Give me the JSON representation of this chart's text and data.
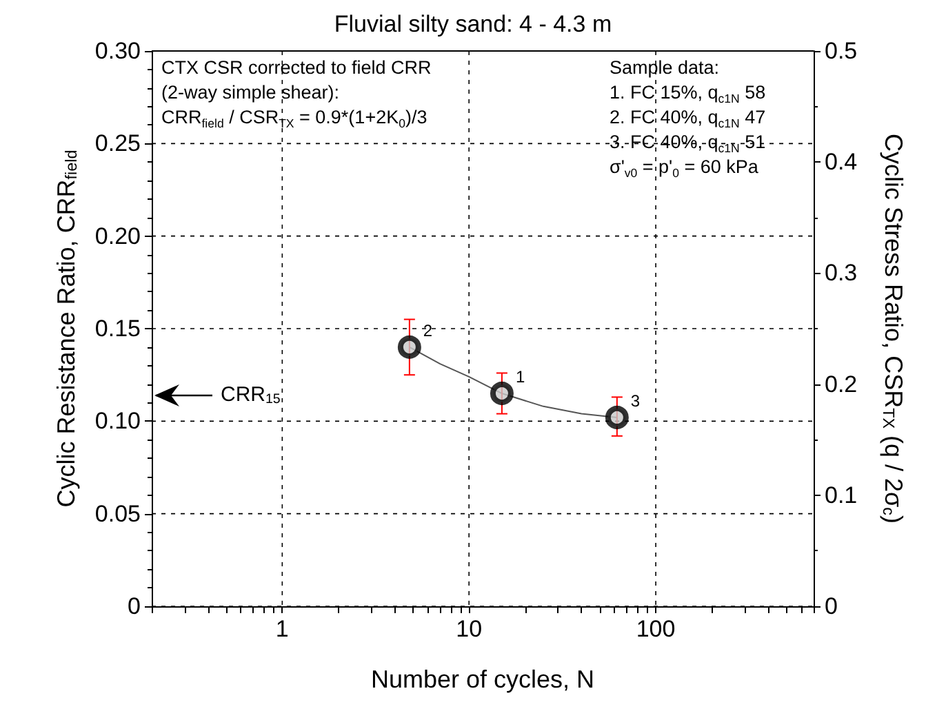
{
  "chart_data": {
    "type": "scatter",
    "title": "Fluvial silty sand: 4 - 4.3 m",
    "xlabel": "Number of cycles, N",
    "ylabel": "Cyclic Resistance Ratio, CRR$_{field}$",
    "y2label": "Cyclic Stress Ratio, CSR$_{TX}$ (q / 2σ$_{c}$)",
    "series": [
      {
        "type": "line",
        "color": "#555555",
        "x": [
          4.8,
          7,
          10,
          15,
          25,
          40,
          62
        ],
        "values": [
          0.14,
          0.131,
          0.124,
          0.115,
          0.108,
          0.104,
          0.102
        ],
        "marker": "none"
      },
      {
        "color": "#000000",
        "x": [
          4.8,
          15,
          62
        ],
        "values": [
          0.14,
          0.115,
          0.102
        ],
        "errors": [
          0.015,
          [
            0.104,
            0.126
          ],
          [
            0.092,
            0.113
          ]
        ],
        "marker": "circle"
      }
    ],
    "xlim": [
      0.2,
      700
    ],
    "log": "x",
    "xticks": [
      {
        "value": 0.2,
        "label": null
      },
      {
        "value": 0.3,
        "label": null
      },
      {
        "value": 0.4,
        "label": null
      },
      {
        "value": 0.5,
        "label": null
      },
      {
        "value": 0.6,
        "label": null
      },
      {
        "value": 0.7,
        "label": null
      },
      {
        "value": 0.8,
        "label": null
      },
      {
        "value": 0.9,
        "label": null
      },
      1,
      {
        "value": 2,
        "label": null
      },
      {
        "value": 3,
        "label": null
      },
      {
        "value": 4,
        "label": null
      },
      {
        "value": 5,
        "label": null
      },
      {
        "value": 6,
        "label": null
      },
      {
        "value": 7,
        "label": null
      },
      {
        "value": 8,
        "label": null
      },
      {
        "value": 9,
        "label": null
      },
      10,
      {
        "value": 20,
        "label": null
      },
      {
        "value": 30,
        "label": null
      },
      {
        "value": 40,
        "label": null
      },
      {
        "value": 50,
        "label": null
      },
      {
        "value": 60,
        "label": null
      },
      {
        "value": 70,
        "label": null
      },
      {
        "value": 80,
        "label": null
      },
      {
        "value": 90,
        "label": null
      },
      100,
      {
        "value": 200,
        "label": null
      },
      {
        "value": 300,
        "label": null
      },
      {
        "value": 400,
        "label": null
      },
      {
        "value": 500,
        "label": null
      },
      {
        "value": 600,
        "label": null
      },
      {
        "value": 700,
        "label": null
      }
    ],
    "ylim": [
      0,
      0.3
    ],
    "yticks": [
      0,
      0.05,
      {
        "value": 0.1,
        "label": "0.10"
      },
      0.15,
      {
        "value": 0.2,
        "label": "0.20"
      },
      0.25,
      {
        "value": 0.3,
        "label": "0.30"
      }
    ],
    "y2lim": [
      0,
      0.5
    ],
    "y2ticks": [
      0,
      0.1,
      0.2,
      0.3,
      0.4,
      0.5
    ],
    "grid": true,
    "annotations": [
      "CTX CSR corrected to field CRR\n(2-way simple shear):\nCRR$_{field}$ / CSR$_{TX}$ = 0.9*(1+2K$_{0}$)/3",
      "Sample data:\n1. FC 15%, q$_{c1N}$ 58\n2. FC 40%, q$_{c1N}$ 47\n3. FC 40%, q$_{c1N}$ 51\nσ'$_{v0}$ = p'$_{0}$ = 60 kPa",
      {
        "text": "2",
        "x": 4.8,
        "y": 0.14
      },
      {
        "text": "1",
        "x": 15,
        "y": 0.115
      },
      {
        "text": "3",
        "x": 62,
        "y": 0.102
      },
      "CRR$_{15}$"
    ]
  }
}
